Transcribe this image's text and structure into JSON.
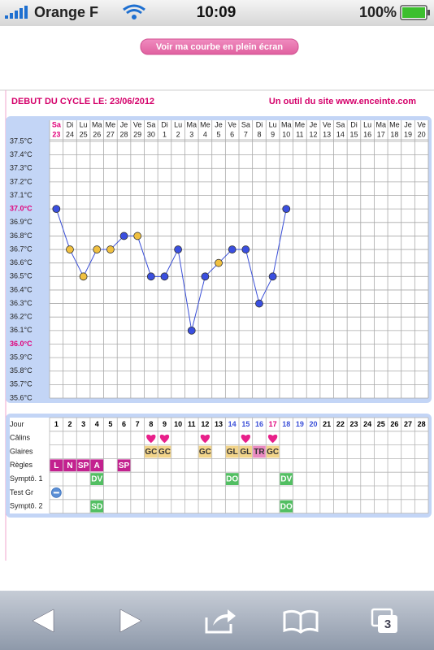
{
  "status_bar": {
    "carrier": "Orange F",
    "time": "10:09",
    "battery": "100%"
  },
  "button": "Voir ma courbe en plein écran",
  "header": {
    "left": "DEBUT DU CYCLE LE: 23/06/2012",
    "right": "Un outil du site www.enceinte.com"
  },
  "chart_data": {
    "type": "line",
    "weekdays": [
      "Sa",
      "Di",
      "Lu",
      "Ma",
      "Me",
      "Je",
      "Ve",
      "Sa",
      "Di",
      "Lu",
      "Ma",
      "Me",
      "Je",
      "Ve",
      "Sa",
      "Di",
      "Lu",
      "Ma",
      "Me",
      "Je",
      "Ve",
      "Sa",
      "Di",
      "Lu",
      "Ma",
      "Me",
      "Je",
      "Ve"
    ],
    "categories": [
      "23",
      "24",
      "25",
      "26",
      "27",
      "28",
      "29",
      "30",
      "1",
      "2",
      "3",
      "4",
      "5",
      "6",
      "7",
      "8",
      "9",
      "10",
      "11",
      "12",
      "13",
      "14",
      "15",
      "16",
      "17",
      "18",
      "19",
      "20"
    ],
    "first_day_color": "#e0007a",
    "series": [
      {
        "color": "#3a4fd8",
        "values": [
          37.0,
          36.7,
          36.5,
          36.7,
          36.7,
          36.8,
          36.8,
          36.5,
          36.5,
          36.7,
          36.1,
          36.5,
          36.6,
          36.7,
          36.7,
          36.3,
          36.5,
          37.0,
          null,
          null,
          null,
          null,
          null,
          null,
          null,
          null,
          null,
          null
        ],
        "point_colors": [
          "#3a4fe0",
          "#f0c040",
          "#f0c040",
          "#f0c040",
          "#f0c040",
          "#3a4fe0",
          "#f0c040",
          "#3a4fe0",
          "#3a4fe0",
          "#3a4fe0",
          "#3a4fe0",
          "#3a4fe0",
          "#f0c040",
          "#3a4fe0",
          "#3a4fe0",
          "#3a4fe0",
          "#3a4fe0",
          "#3a4fe0",
          null,
          null,
          null,
          null,
          null,
          null,
          null,
          null,
          null,
          null
        ]
      }
    ],
    "ylim": [
      35.6,
      37.5
    ],
    "yticks": [
      {
        "value": 37.5,
        "label": "37.5°C"
      },
      {
        "value": 37.4,
        "label": "37.4°C"
      },
      {
        "value": 37.3,
        "label": "37.3°C"
      },
      {
        "value": 37.2,
        "label": "37.2°C"
      },
      {
        "value": 37.1,
        "label": "37.1°C"
      },
      {
        "value": 37.0,
        "label": "37.0°C",
        "color": "#e0007a"
      },
      {
        "value": 36.9,
        "label": "36.9°C"
      },
      {
        "value": 36.8,
        "label": "36.8°C"
      },
      {
        "value": 36.7,
        "label": "36.7°C"
      },
      {
        "value": 36.6,
        "label": "36.6°C"
      },
      {
        "value": 36.5,
        "label": "36.5°C"
      },
      {
        "value": 36.4,
        "label": "36.4°C"
      },
      {
        "value": 36.3,
        "label": "36.3°C"
      },
      {
        "value": 36.2,
        "label": "36.2°C"
      },
      {
        "value": 36.1,
        "label": "36.1°C"
      },
      {
        "value": 36.0,
        "label": "36.0°C",
        "color": "#e0007a"
      },
      {
        "value": 35.9,
        "label": "35.9°C"
      },
      {
        "value": 35.8,
        "label": "35.8°C"
      },
      {
        "value": 35.7,
        "label": "35.7°C"
      },
      {
        "value": 35.6,
        "label": "35.6°C"
      }
    ],
    "grid": true
  },
  "table": {
    "day_label": "Jour",
    "days": [
      1,
      2,
      3,
      4,
      5,
      6,
      7,
      8,
      9,
      10,
      11,
      12,
      13,
      14,
      15,
      16,
      17,
      18,
      19,
      20,
      21,
      22,
      23,
      24,
      25,
      26,
      27,
      28
    ],
    "day_colors": [
      "#000",
      "#000",
      "#000",
      "#000",
      "#000",
      "#000",
      "#000",
      "#000",
      "#000",
      "#000",
      "#000",
      "#000",
      "#000",
      "#3a4fd8",
      "#3a4fd8",
      "#3a4fd8",
      "#e0007a",
      "#3a4fd8",
      "#3a4fd8",
      "#3a4fd8",
      "#000",
      "#000",
      "#000",
      "#000",
      "#000",
      "#000",
      "#000",
      "#000"
    ],
    "rows": [
      {
        "label": "Câlins",
        "entries": [
          {
            "day": 8,
            "icon": "heart",
            "color": "#e8208a"
          },
          {
            "day": 9,
            "icon": "heart",
            "color": "#e8208a"
          },
          {
            "day": 12,
            "icon": "heart",
            "color": "#e8208a"
          },
          {
            "day": 15,
            "icon": "heart",
            "color": "#e8208a"
          },
          {
            "day": 17,
            "icon": "heart",
            "color": "#e8208a"
          }
        ]
      },
      {
        "label": "Glaires",
        "text_color": "#333",
        "entries": [
          {
            "day": 8,
            "text": "GC",
            "color": "#f2d48a"
          },
          {
            "day": 9,
            "text": "GC",
            "color": "#f2d48a"
          },
          {
            "day": 12,
            "text": "GC",
            "color": "#f2d48a"
          },
          {
            "day": 14,
            "text": "GL",
            "color": "#f2d48a"
          },
          {
            "day": 15,
            "text": "GL",
            "color": "#f2d48a"
          },
          {
            "day": 16,
            "text": "TR",
            "color": "#e98ac0"
          },
          {
            "day": 17,
            "text": "GC",
            "color": "#f2d48a"
          }
        ]
      },
      {
        "label": "Règles",
        "text_color": "#fff",
        "entries": [
          {
            "day": 1,
            "text": "L",
            "color": "#c3218f"
          },
          {
            "day": 2,
            "text": "N",
            "color": "#c3218f"
          },
          {
            "day": 3,
            "text": "SP",
            "color": "#c3218f"
          },
          {
            "day": 4,
            "text": "A",
            "color": "#c3218f"
          },
          {
            "day": 6,
            "text": "SP",
            "color": "#c3218f"
          }
        ]
      },
      {
        "label": "Symptô. 1",
        "text_color": "#fff",
        "entries": [
          {
            "day": 4,
            "text": "DV",
            "color": "#52bf62"
          },
          {
            "day": 14,
            "text": "DO",
            "color": "#52bf62"
          },
          {
            "day": 18,
            "text": "DV",
            "color": "#52bf62"
          }
        ]
      },
      {
        "label": "Test Gr",
        "entries": [
          {
            "day": 1,
            "icon": "minus",
            "color": "#5b8fd6"
          }
        ]
      },
      {
        "label": "Symptô. 2",
        "text_color": "#fff",
        "entries": [
          {
            "day": 4,
            "text": "SD",
            "color": "#52bf62"
          },
          {
            "day": 18,
            "text": "DO",
            "color": "#52bf62"
          }
        ]
      }
    ]
  },
  "toolbar": {
    "tabs_count": 3
  }
}
